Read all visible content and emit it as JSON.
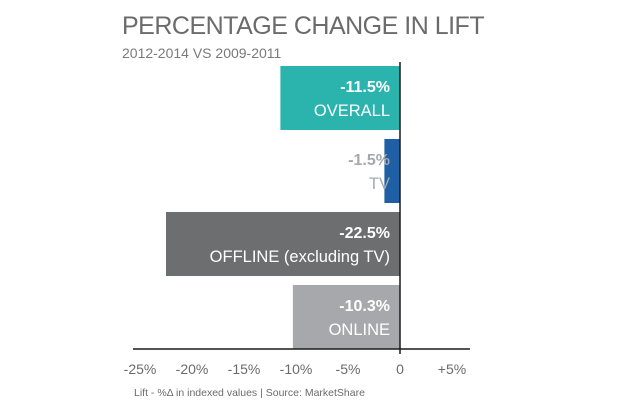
{
  "chart_data": {
    "type": "bar",
    "orientation": "horizontal",
    "title": "PERCENTAGE CHANGE IN LIFT",
    "subtitle": "2012-2014  VS  2009-2011",
    "categories": [
      "OVERALL",
      "TV",
      "OFFLINE (excluding TV)",
      "ONLINE"
    ],
    "values": [
      -11.5,
      -1.5,
      -22.5,
      -10.3
    ],
    "value_labels": [
      "-11.5%",
      "-1.5%",
      "-22.5%",
      "-10.3%"
    ],
    "colors": [
      "#2bb3ae",
      "#1f5fa6",
      "#6d6e70",
      "#a6a8ab"
    ],
    "label_colors": [
      "#ffffff",
      "#a6a8ab",
      "#ffffff",
      "#ffffff"
    ],
    "xlim": [
      -27,
      6
    ],
    "xticks": [
      -25,
      -20,
      -15,
      -10,
      -5,
      0,
      5
    ],
    "xtick_labels": [
      "-25%",
      "-20%",
      "-15%",
      "-10%",
      "-5%",
      "0",
      "+5%"
    ],
    "footnote": "Lift - %Δ in indexed values  |  Source: MarketShare"
  }
}
